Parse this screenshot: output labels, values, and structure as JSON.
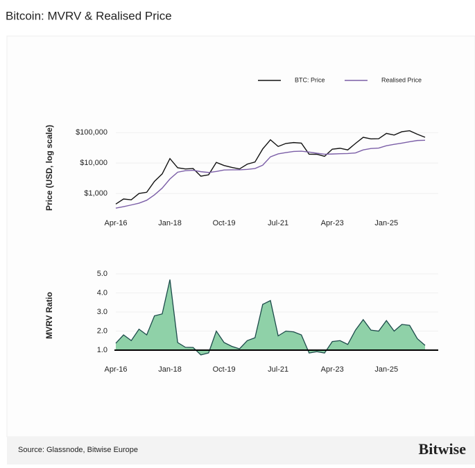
{
  "title": "Bitcoin: MVRV & Realised Price",
  "source": "Source: Glassnode, Bitwise Europe",
  "brand": "Bitwise",
  "chart_data": [
    {
      "type": "line",
      "y_label": "Price (USD, log scale)",
      "log_scale": true,
      "legend": "top-right",
      "x": [
        "Apr-16",
        "Jul-16",
        "Oct-16",
        "Jan-17",
        "Apr-17",
        "Jul-17",
        "Oct-17",
        "Jan-18",
        "Apr-18",
        "Jul-18",
        "Oct-18",
        "Jan-19",
        "Apr-19",
        "Jul-19",
        "Oct-19",
        "Jan-20",
        "Apr-20",
        "Jul-20",
        "Oct-20",
        "Jan-21",
        "Apr-21",
        "Jul-21",
        "Oct-21",
        "Jan-22",
        "Apr-22",
        "Jul-22",
        "Oct-22",
        "Jan-23",
        "Apr-23",
        "Jul-23",
        "Oct-23",
        "Jan-24",
        "Apr-24",
        "Jul-24",
        "Oct-24",
        "Jan-25",
        "Apr-25",
        "Jul-25",
        "Oct-25",
        "Jan-26",
        "Apr-26"
      ],
      "xticks": [
        "Apr-16",
        "Jan-18",
        "Oct-19",
        "Jul-21",
        "Apr-23",
        "Jan-25"
      ],
      "ylim": [
        100,
        200000
      ],
      "yticks": [
        {
          "value": 1000,
          "label": "$1,000"
        },
        {
          "value": 10000,
          "label": "$10,000"
        },
        {
          "value": 100000,
          "label": "$100,000"
        }
      ],
      "series": [
        {
          "name": "BTC: Price",
          "color": "#111111",
          "values": [
            450,
            660,
            620,
            1000,
            1100,
            2500,
            4400,
            14000,
            7000,
            6400,
            6600,
            3700,
            4100,
            10500,
            8300,
            7200,
            6400,
            9200,
            10800,
            29000,
            58000,
            35000,
            44000,
            47000,
            45000,
            19500,
            19400,
            16600,
            28500,
            30500,
            27000,
            44000,
            70000,
            62000,
            63000,
            94000,
            83000,
            107000,
            115000,
            88000,
            70000
          ]
        },
        {
          "name": "Realised Price",
          "color": "#7b5ea7",
          "values": [
            330,
            370,
            420,
            480,
            600,
            900,
            1500,
            3000,
            5000,
            5600,
            5800,
            5200,
            4900,
            5300,
            5900,
            6000,
            6000,
            6200,
            6600,
            8500,
            16000,
            20000,
            22000,
            24000,
            24500,
            23000,
            21000,
            19500,
            19800,
            20300,
            20500,
            21500,
            27000,
            30000,
            31000,
            37000,
            41000,
            45000,
            50000,
            55000,
            56000
          ]
        }
      ]
    },
    {
      "type": "area",
      "y_label": "MVRV Ratio",
      "reference_line": 1,
      "x": [
        "Apr-16",
        "Jul-16",
        "Oct-16",
        "Jan-17",
        "Apr-17",
        "Jul-17",
        "Oct-17",
        "Jan-18",
        "Apr-18",
        "Jul-18",
        "Oct-18",
        "Jan-19",
        "Apr-19",
        "Jul-19",
        "Oct-19",
        "Jan-20",
        "Apr-20",
        "Jul-20",
        "Oct-20",
        "Jan-21",
        "Apr-21",
        "Jul-21",
        "Oct-21",
        "Jan-22",
        "Apr-22",
        "Jul-22",
        "Oct-22",
        "Jan-23",
        "Apr-23",
        "Jul-23",
        "Oct-23",
        "Jan-24",
        "Apr-24",
        "Jul-24",
        "Oct-24",
        "Jan-25",
        "Apr-25",
        "Jul-25",
        "Oct-25",
        "Jan-26",
        "Apr-26"
      ],
      "xticks": [
        "Apr-16",
        "Jan-18",
        "Oct-19",
        "Jul-21",
        "Apr-23",
        "Jan-25"
      ],
      "ylim": [
        0.6,
        5.2
      ],
      "yticks": [
        {
          "value": 1,
          "label": "1.0"
        },
        {
          "value": 2,
          "label": "2.0"
        },
        {
          "value": 3,
          "label": "3.0"
        },
        {
          "value": 4,
          "label": "4.0"
        },
        {
          "value": 5,
          "label": "5.0"
        }
      ],
      "series": [
        {
          "name": "MVRV",
          "color": "#1c4a4a",
          "fill": "#8fd1a8",
          "values": [
            1.36,
            1.8,
            1.5,
            2.1,
            1.8,
            2.8,
            2.9,
            4.7,
            1.4,
            1.15,
            1.14,
            0.75,
            0.85,
            2.0,
            1.4,
            1.2,
            1.07,
            1.5,
            1.65,
            3.4,
            3.6,
            1.75,
            2.0,
            1.96,
            1.8,
            0.85,
            0.92,
            0.85,
            1.45,
            1.5,
            1.3,
            2.05,
            2.6,
            2.05,
            2.0,
            2.55,
            2.0,
            2.35,
            2.3,
            1.6,
            1.25
          ]
        }
      ]
    }
  ]
}
